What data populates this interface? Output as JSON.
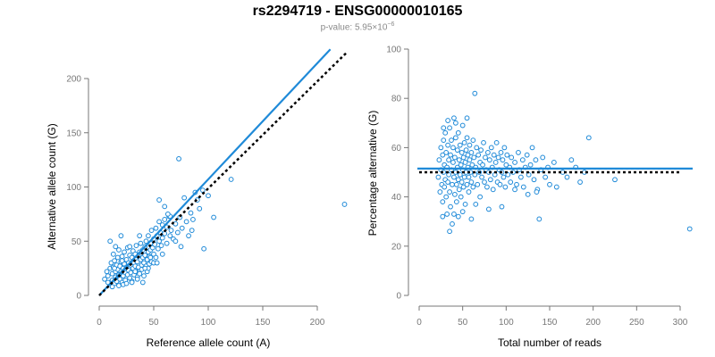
{
  "title": "rs2294719 - ENSG00000010165",
  "subtitle": {
    "prefix": "p-value: ",
    "mantissa": "5.95×10",
    "exponent": "−6"
  },
  "colors": {
    "points": "#1f8ad8",
    "fit": "#1f8ad8",
    "reference": "#000000"
  },
  "chart_data": [
    {
      "type": "scatter",
      "title": "",
      "xlabel": "Reference allele count (A)",
      "ylabel": "Alternative allele count (G)",
      "xlim": [
        0,
        225
      ],
      "ylim": [
        0,
        210
      ],
      "xticks": [
        0,
        50,
        100,
        150,
        200
      ],
      "yticks": [
        0,
        50,
        100,
        150,
        200
      ],
      "fit_line": {
        "style": "solid",
        "x": [
          0,
          212
        ],
        "y": [
          0,
          227
        ]
      },
      "reference_line": {
        "style": "dotted",
        "x": [
          0,
          228
        ],
        "y": [
          0,
          225
        ]
      },
      "points": [
        [
          5,
          15
        ],
        [
          7,
          22
        ],
        [
          8,
          18
        ],
        [
          10,
          25
        ],
        [
          10,
          12
        ],
        [
          11,
          30
        ],
        [
          12,
          20
        ],
        [
          12,
          14
        ],
        [
          13,
          38
        ],
        [
          13,
          26
        ],
        [
          14,
          11
        ],
        [
          14,
          32
        ],
        [
          15,
          22
        ],
        [
          15,
          17
        ],
        [
          16,
          28
        ],
        [
          16,
          13
        ],
        [
          17,
          35
        ],
        [
          17,
          24
        ],
        [
          18,
          19
        ],
        [
          18,
          42
        ],
        [
          19,
          27
        ],
        [
          19,
          15
        ],
        [
          20,
          31
        ],
        [
          20,
          22
        ],
        [
          21,
          12
        ],
        [
          21,
          36
        ],
        [
          22,
          25
        ],
        [
          22,
          18
        ],
        [
          23,
          40
        ],
        [
          23,
          29
        ],
        [
          24,
          21
        ],
        [
          24,
          14
        ],
        [
          25,
          33
        ],
        [
          25,
          26
        ],
        [
          26,
          19
        ],
        [
          26,
          44
        ],
        [
          27,
          30
        ],
        [
          27,
          23
        ],
        [
          28,
          16
        ],
        [
          28,
          37
        ],
        [
          29,
          28
        ],
        [
          29,
          21
        ],
        [
          30,
          35
        ],
        [
          30,
          13
        ],
        [
          31,
          25
        ],
        [
          31,
          41
        ],
        [
          32,
          30
        ],
        [
          32,
          19
        ],
        [
          33,
          38
        ],
        [
          33,
          27
        ],
        [
          34,
          22
        ],
        [
          34,
          46
        ],
        [
          35,
          31
        ],
        [
          35,
          17
        ],
        [
          36,
          36
        ],
        [
          36,
          26
        ],
        [
          37,
          40
        ],
        [
          37,
          20
        ],
        [
          38,
          33
        ],
        [
          38,
          48
        ],
        [
          39,
          28
        ],
        [
          39,
          24
        ],
        [
          40,
          42
        ],
        [
          40,
          35
        ],
        [
          41,
          30
        ],
        [
          41,
          18
        ],
        [
          42,
          45
        ],
        [
          42,
          37
        ],
        [
          43,
          27
        ],
        [
          43,
          50
        ],
        [
          44,
          33
        ],
        [
          44,
          22
        ],
        [
          45,
          40
        ],
        [
          45,
          55
        ],
        [
          46,
          36
        ],
        [
          46,
          29
        ],
        [
          47,
          48
        ],
        [
          47,
          42
        ],
        [
          48,
          31
        ],
        [
          48,
          60
        ],
        [
          49,
          44
        ],
        [
          50,
          38
        ],
        [
          50,
          52
        ],
        [
          51,
          47
        ],
        [
          52,
          35
        ],
        [
          52,
          62
        ],
        [
          53,
          55
        ],
        [
          54,
          43
        ],
        [
          55,
          68
        ],
        [
          55,
          50
        ],
        [
          56,
          58
        ],
        [
          57,
          46
        ],
        [
          58,
          65
        ],
        [
          58,
          53
        ],
        [
          60,
          70
        ],
        [
          60,
          57
        ],
        [
          62,
          48
        ],
        [
          62,
          63
        ],
        [
          64,
          73
        ],
        [
          65,
          55
        ],
        [
          66,
          60
        ],
        [
          68,
          52
        ],
        [
          70,
          66
        ],
        [
          72,
          58
        ],
        [
          73,
          126
        ],
        [
          74,
          72
        ],
        [
          76,
          62
        ],
        [
          78,
          90
        ],
        [
          80,
          68
        ],
        [
          82,
          55
        ],
        [
          84,
          76
        ],
        [
          86,
          70
        ],
        [
          88,
          95
        ],
        [
          90,
          88
        ],
        [
          92,
          80
        ],
        [
          95,
          97
        ],
        [
          96,
          43
        ],
        [
          100,
          92
        ],
        [
          105,
          72
        ],
        [
          121,
          107
        ],
        [
          10,
          50
        ],
        [
          15,
          45
        ],
        [
          20,
          55
        ],
        [
          12,
          8
        ],
        [
          18,
          9
        ],
        [
          22,
          10
        ],
        [
          25,
          11
        ],
        [
          30,
          12
        ],
        [
          35,
          15
        ],
        [
          40,
          12
        ],
        [
          45,
          25
        ],
        [
          50,
          30
        ],
        [
          55,
          88
        ],
        [
          60,
          82
        ],
        [
          65,
          73
        ],
        [
          225,
          84
        ],
        [
          8,
          12
        ],
        [
          14,
          25
        ],
        [
          21,
          32
        ],
        [
          28,
          45
        ],
        [
          33,
          22
        ],
        [
          37,
          55
        ],
        [
          42,
          25
        ],
        [
          47,
          35
        ],
        [
          53,
          30
        ],
        [
          58,
          38
        ],
        [
          63,
          75
        ],
        [
          70,
          50
        ],
        [
          75,
          45
        ],
        [
          85,
          60
        ]
      ]
    },
    {
      "type": "scatter",
      "title": "",
      "xlabel": "Total number of reads",
      "ylabel": "Percentage alternative (G)",
      "xlim": [
        0,
        310
      ],
      "ylim": [
        0,
        100
      ],
      "xticks": [
        0,
        50,
        100,
        150,
        200,
        250,
        300
      ],
      "yticks": [
        0,
        20,
        40,
        60,
        80,
        100
      ],
      "fit_line": {
        "style": "solid",
        "y": 51.5
      },
      "reference_line": {
        "style": "dotted",
        "y": 50
      },
      "points": [
        [
          22,
          48
        ],
        [
          23,
          55
        ],
        [
          24,
          42
        ],
        [
          25,
          60
        ],
        [
          25,
          51
        ],
        [
          26,
          45
        ],
        [
          27,
          57
        ],
        [
          27,
          38
        ],
        [
          28,
          63
        ],
        [
          28,
          50
        ],
        [
          29,
          44
        ],
        [
          29,
          53
        ],
        [
          30,
          66
        ],
        [
          30,
          47
        ],
        [
          31,
          40
        ],
        [
          31,
          58
        ],
        [
          32,
          52
        ],
        [
          32,
          33
        ],
        [
          33,
          61
        ],
        [
          33,
          46
        ],
        [
          34,
          55
        ],
        [
          34,
          49
        ],
        [
          35,
          68
        ],
        [
          35,
          42
        ],
        [
          36,
          57
        ],
        [
          36,
          36
        ],
        [
          37,
          51
        ],
        [
          37,
          63
        ],
        [
          38,
          45
        ],
        [
          38,
          29
        ],
        [
          39,
          54
        ],
        [
          39,
          60
        ],
        [
          40,
          48
        ],
        [
          40,
          72
        ],
        [
          41,
          41
        ],
        [
          41,
          56
        ],
        [
          42,
          50
        ],
        [
          42,
          64
        ],
        [
          43,
          45
        ],
        [
          43,
          38
        ],
        [
          44,
          59
        ],
        [
          44,
          52
        ],
        [
          45,
          47
        ],
        [
          45,
          66
        ],
        [
          46,
          55
        ],
        [
          46,
          43
        ],
        [
          47,
          61
        ],
        [
          47,
          49
        ],
        [
          48,
          53
        ],
        [
          48,
          40
        ],
        [
          49,
          58
        ],
        [
          49,
          46
        ],
        [
          50,
          51
        ],
        [
          50,
          69
        ],
        [
          51,
          44
        ],
        [
          51,
          56
        ],
        [
          52,
          62
        ],
        [
          52,
          48
        ],
        [
          53,
          54
        ],
        [
          53,
          37
        ],
        [
          54,
          59
        ],
        [
          54,
          50
        ],
        [
          55,
          45
        ],
        [
          55,
          64
        ],
        [
          56,
          52
        ],
        [
          56,
          57
        ],
        [
          57,
          48
        ],
        [
          57,
          42
        ],
        [
          58,
          61
        ],
        [
          58,
          55
        ],
        [
          59,
          50
        ],
        [
          60,
          46
        ],
        [
          60,
          58
        ],
        [
          61,
          53
        ],
        [
          62,
          63
        ],
        [
          62,
          44
        ],
        [
          63,
          56
        ],
        [
          64,
          49
        ],
        [
          64,
          82
        ],
        [
          65,
          52
        ],
        [
          66,
          60
        ],
        [
          67,
          45
        ],
        [
          68,
          57
        ],
        [
          69,
          50
        ],
        [
          70,
          54
        ],
        [
          70,
          40
        ],
        [
          71,
          59
        ],
        [
          72,
          48
        ],
        [
          73,
          53
        ],
        [
          74,
          62
        ],
        [
          75,
          46
        ],
        [
          76,
          56
        ],
        [
          77,
          51
        ],
        [
          78,
          44
        ],
        [
          79,
          58
        ],
        [
          80,
          50
        ],
        [
          81,
          55
        ],
        [
          82,
          47
        ],
        [
          83,
          60
        ],
        [
          84,
          52
        ],
        [
          85,
          43
        ],
        [
          86,
          57
        ],
        [
          87,
          49
        ],
        [
          88,
          54
        ],
        [
          89,
          62
        ],
        [
          90,
          46
        ],
        [
          91,
          56
        ],
        [
          92,
          51
        ],
        [
          93,
          45
        ],
        [
          94,
          58
        ],
        [
          95,
          50
        ],
        [
          96,
          55
        ],
        [
          97,
          48
        ],
        [
          98,
          60
        ],
        [
          99,
          44
        ],
        [
          100,
          53
        ],
        [
          101,
          57
        ],
        [
          102,
          49
        ],
        [
          104,
          52
        ],
        [
          105,
          46
        ],
        [
          106,
          56
        ],
        [
          108,
          50
        ],
        [
          110,
          54
        ],
        [
          112,
          45
        ],
        [
          114,
          58
        ],
        [
          115,
          51
        ],
        [
          117,
          48
        ],
        [
          119,
          55
        ],
        [
          120,
          44
        ],
        [
          122,
          52
        ],
        [
          124,
          57
        ],
        [
          126,
          49
        ],
        [
          128,
          53
        ],
        [
          130,
          60
        ],
        [
          132,
          47
        ],
        [
          134,
          55
        ],
        [
          136,
          43
        ],
        [
          138,
          31
        ],
        [
          140,
          51
        ],
        [
          142,
          56
        ],
        [
          145,
          48
        ],
        [
          148,
          52
        ],
        [
          150,
          45
        ],
        [
          155,
          54
        ],
        [
          158,
          44
        ],
        [
          165,
          50
        ],
        [
          170,
          48
        ],
        [
          175,
          55
        ],
        [
          180,
          52
        ],
        [
          185,
          46
        ],
        [
          190,
          50
        ],
        [
          195,
          64
        ],
        [
          225,
          47
        ],
        [
          311,
          27
        ],
        [
          35,
          26
        ],
        [
          45,
          32
        ],
        [
          27,
          32
        ],
        [
          40,
          33
        ],
        [
          60,
          31
        ],
        [
          80,
          35
        ],
        [
          28,
          68
        ],
        [
          33,
          71
        ],
        [
          42,
          70
        ],
        [
          55,
          72
        ],
        [
          50,
          34
        ],
        [
          65,
          37
        ],
        [
          95,
          36
        ],
        [
          110,
          43
        ],
        [
          125,
          41
        ],
        [
          135,
          42
        ]
      ]
    }
  ]
}
